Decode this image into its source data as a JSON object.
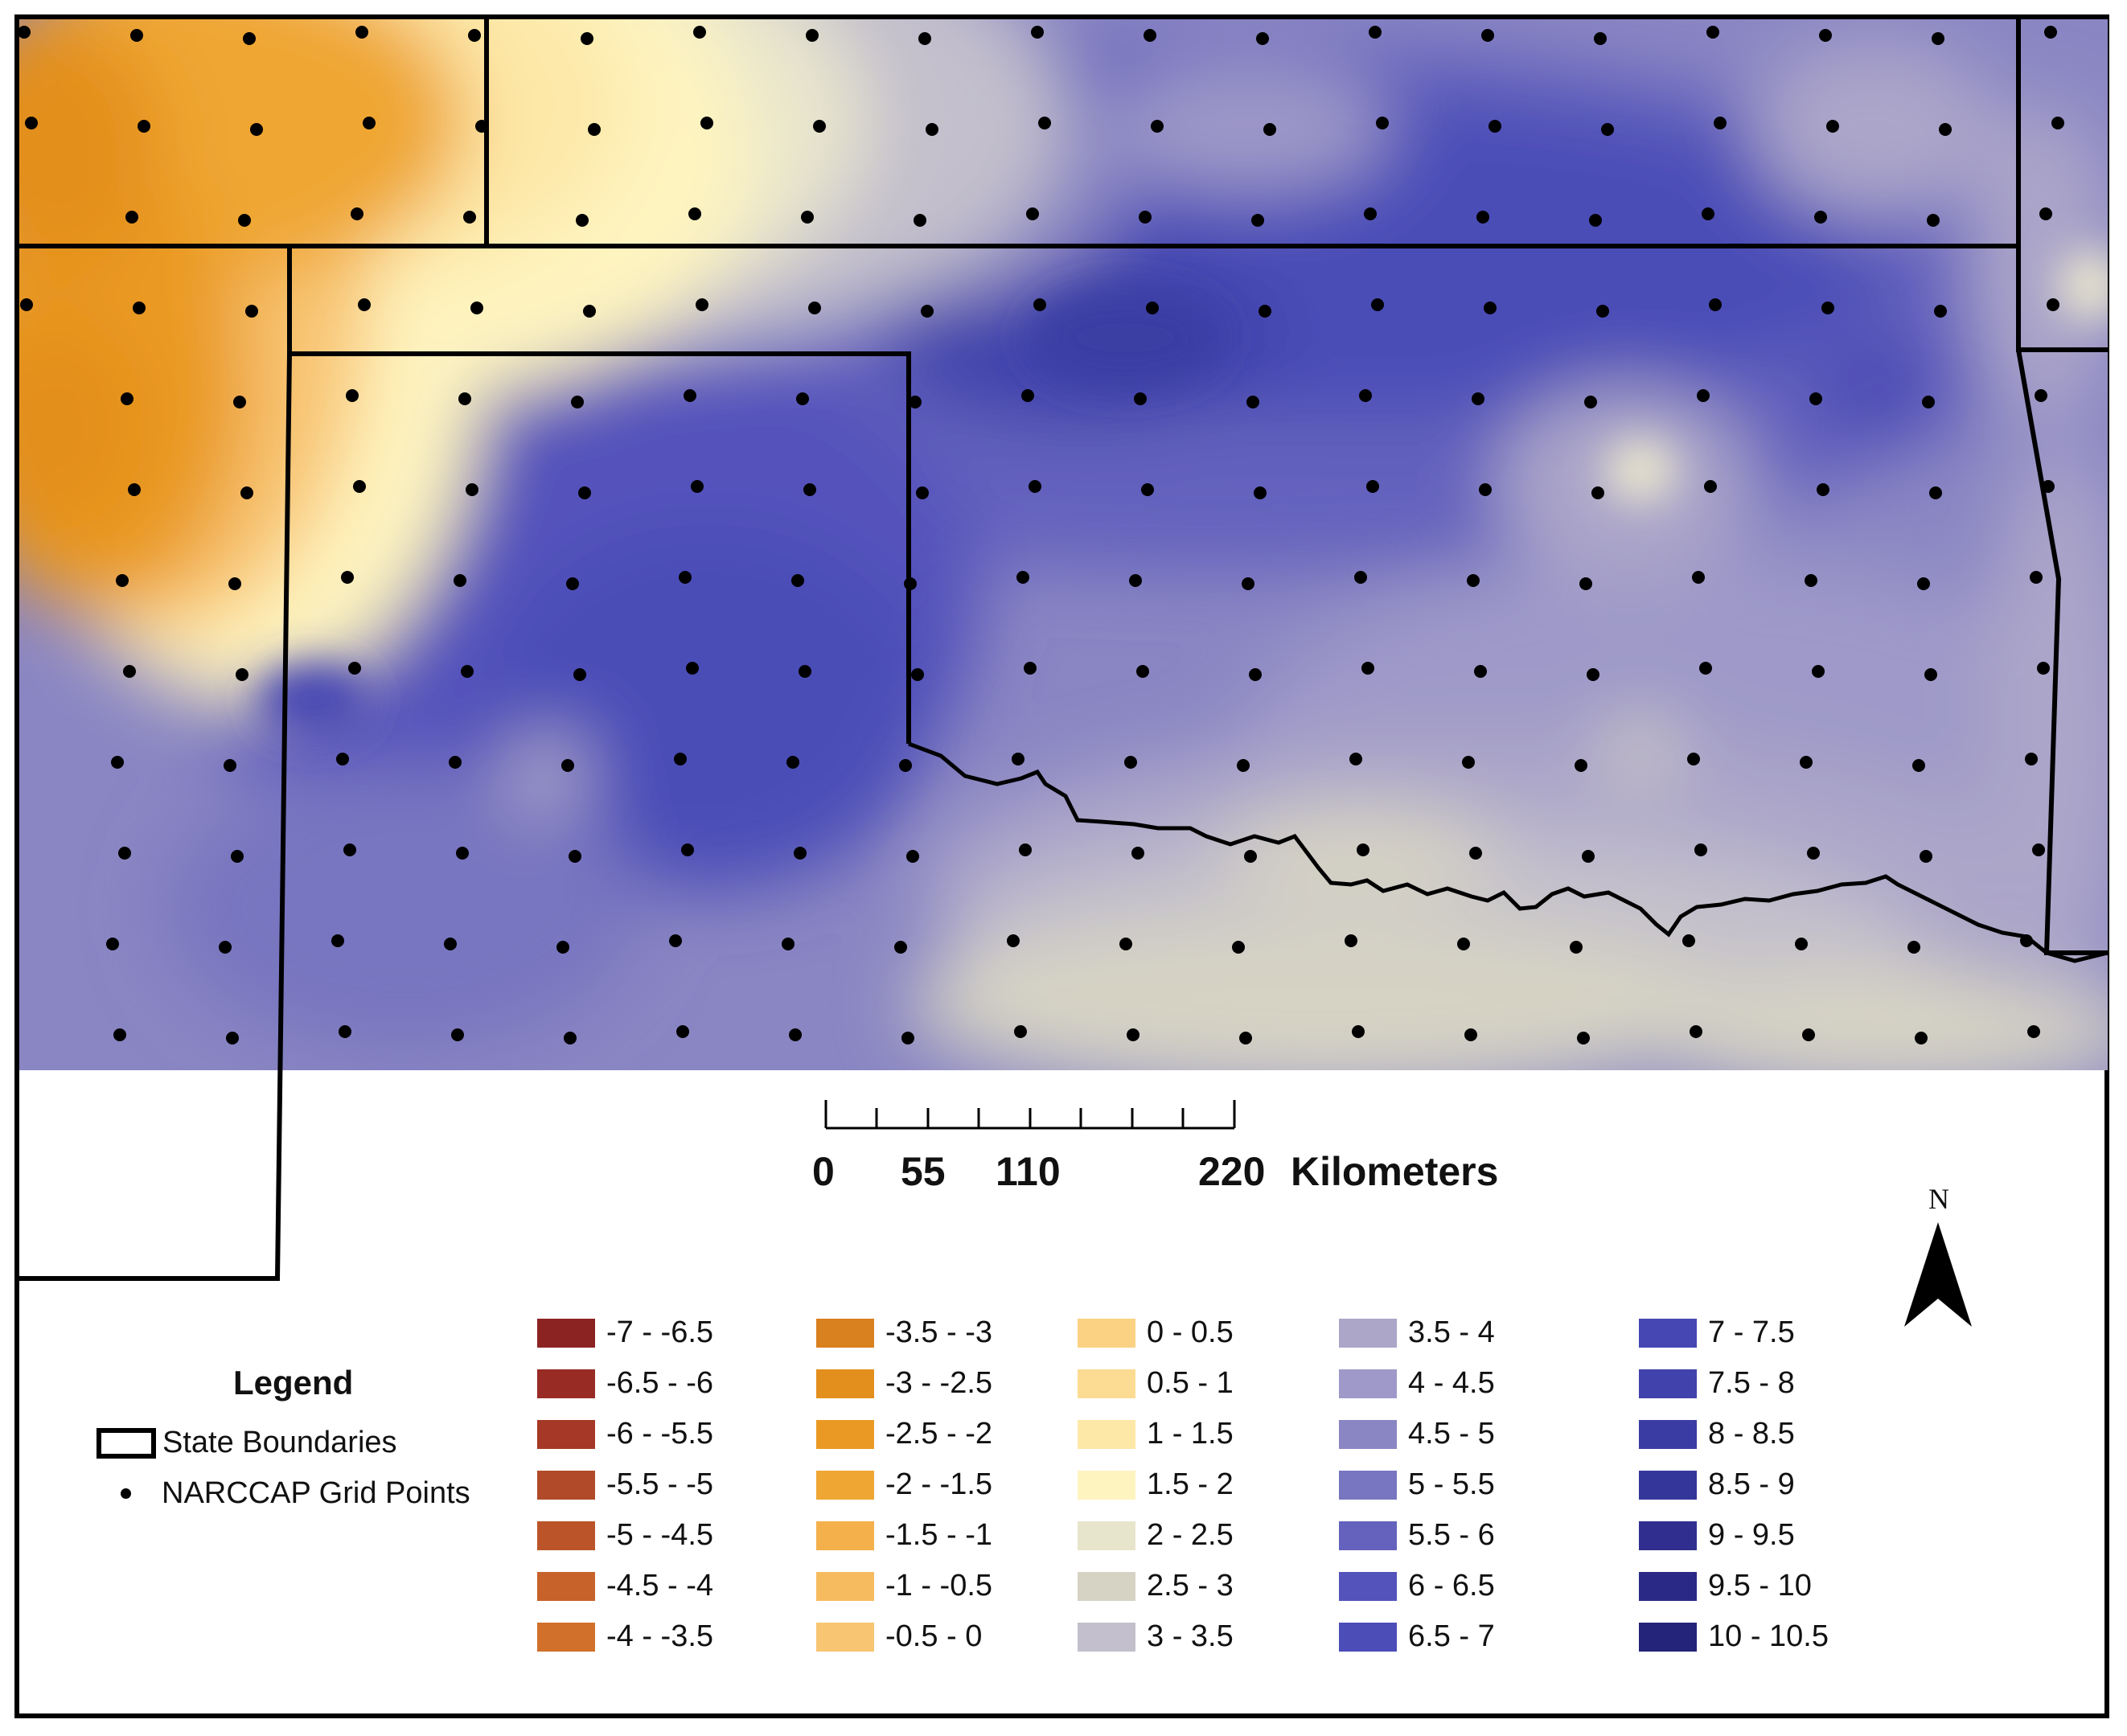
{
  "scale_bar": {
    "tick_labels": [
      "0",
      "55",
      "110",
      "220"
    ],
    "unit": "Kilometers"
  },
  "north_arrow": {
    "label": "N"
  },
  "legend": {
    "title": "Legend",
    "state_boundaries_label": "State Boundaries",
    "grid_points_label": "NARCCAP Grid Points",
    "classes": [
      {
        "label": "-7 - -6.5",
        "color": "#8c2323"
      },
      {
        "label": "-6.5 - -6",
        "color": "#982b24"
      },
      {
        "label": "-6 - -5.5",
        "color": "#a53826"
      },
      {
        "label": "-5.5 - -5",
        "color": "#b04a28"
      },
      {
        "label": "-5 - -4.5",
        "color": "#bb5529"
      },
      {
        "label": "-4.5 - -4",
        "color": "#c6622a"
      },
      {
        "label": "-4 - -3.5",
        "color": "#d0702a"
      },
      {
        "label": "-3.5 - -3",
        "color": "#d9801f"
      },
      {
        "label": "-3 - -2.5",
        "color": "#e38f1d"
      },
      {
        "label": "-2.5 - -2",
        "color": "#ea9a24"
      },
      {
        "label": "-2 - -1.5",
        "color": "#efa633"
      },
      {
        "label": "-1.5 - -1",
        "color": "#f3b04b"
      },
      {
        "label": "-1 - -0.5",
        "color": "#f6bb5f"
      },
      {
        "label": "-0.5 - 0",
        "color": "#f8c572"
      },
      {
        "label": "0 - 0.5",
        "color": "#fbd283"
      },
      {
        "label": "0.5 - 1",
        "color": "#fcdc92"
      },
      {
        "label": "1 - 1.5",
        "color": "#fde8a8"
      },
      {
        "label": "1.5 - 2",
        "color": "#fef4c0"
      },
      {
        "label": "2 - 2.5",
        "color": "#e8e5cd"
      },
      {
        "label": "2.5 - 3",
        "color": "#d6d3c4"
      },
      {
        "label": "3 - 3.5",
        "color": "#c3bfcc"
      },
      {
        "label": "3.5 - 4",
        "color": "#aca6c9"
      },
      {
        "label": "4 - 4.5",
        "color": "#9e99c8"
      },
      {
        "label": "4.5 - 5",
        "color": "#8a86c3"
      },
      {
        "label": "5 - 5.5",
        "color": "#7876c0"
      },
      {
        "label": "5.5 - 6",
        "color": "#6462bd"
      },
      {
        "label": "6 - 6.5",
        "color": "#5453bb"
      },
      {
        "label": "6.5 - 7",
        "color": "#4c4db7"
      },
      {
        "label": "7 - 7.5",
        "color": "#4647b3"
      },
      {
        "label": "7.5 - 8",
        "color": "#4142ab"
      },
      {
        "label": "8 - 8.5",
        "color": "#3b3ca3"
      },
      {
        "label": "8.5 - 9",
        "color": "#35369a"
      },
      {
        "label": "9 - 9.5",
        "color": "#302f90"
      },
      {
        "label": "9.5 - 10",
        "color": "#2a2a86"
      },
      {
        "label": "10 - 10.5",
        "color": "#24247a"
      }
    ]
  }
}
